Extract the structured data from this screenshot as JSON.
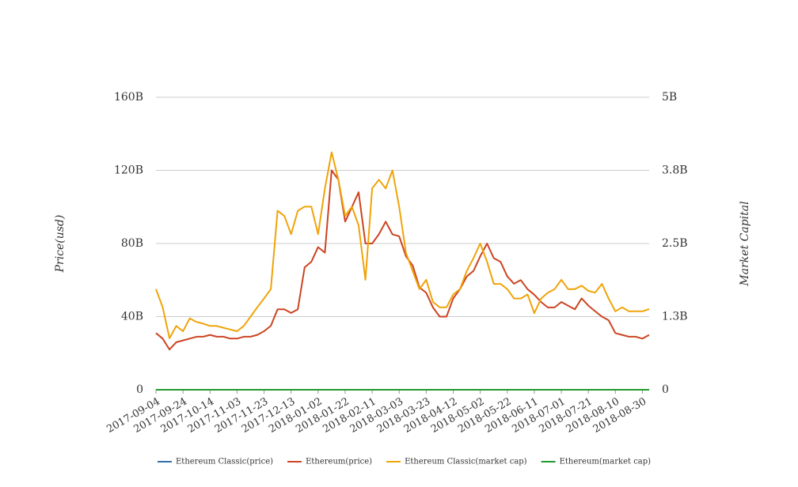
{
  "chart_data": {
    "type": "line",
    "y_label": "Price(usd)",
    "y2_label": "Market Capital",
    "x": [
      "2017-09-04",
      "2017-09-09",
      "2017-09-14",
      "2017-09-19",
      "2017-09-24",
      "2017-09-29",
      "2017-10-04",
      "2017-10-09",
      "2017-10-14",
      "2017-10-19",
      "2017-10-24",
      "2017-10-29",
      "2017-11-03",
      "2017-11-08",
      "2017-11-13",
      "2017-11-18",
      "2017-11-23",
      "2017-11-28",
      "2017-12-03",
      "2017-12-08",
      "2017-12-13",
      "2017-12-18",
      "2017-12-23",
      "2017-12-28",
      "2018-01-02",
      "2018-01-07",
      "2018-01-12",
      "2018-01-17",
      "2018-01-22",
      "2018-01-27",
      "2018-02-01",
      "2018-02-06",
      "2018-02-11",
      "2018-02-16",
      "2018-02-21",
      "2018-02-26",
      "2018-03-03",
      "2018-03-08",
      "2018-03-13",
      "2018-03-18",
      "2018-03-23",
      "2018-03-28",
      "2018-04-02",
      "2018-04-07",
      "2018-04-12",
      "2018-04-17",
      "2018-04-22",
      "2018-04-27",
      "2018-05-02",
      "2018-05-07",
      "2018-05-12",
      "2018-05-17",
      "2018-05-22",
      "2018-05-27",
      "2018-06-01",
      "2018-06-06",
      "2018-06-11",
      "2018-06-16",
      "2018-06-21",
      "2018-06-26",
      "2018-07-01",
      "2018-07-06",
      "2018-07-11",
      "2018-07-16",
      "2018-07-21",
      "2018-07-26",
      "2018-07-31",
      "2018-08-05",
      "2018-08-10",
      "2018-08-15",
      "2018-08-20",
      "2018-08-25",
      "2018-08-30",
      "2018-09-04"
    ],
    "xlim": [
      "2017-09-04",
      "2018-09-04"
    ],
    "xticks": [
      "2017-09-04",
      "2017-09-24",
      "2017-10-14",
      "2017-11-03",
      "2017-11-23",
      "2017-12-13",
      "2018-01-02",
      "2018-01-22",
      "2018-02-11",
      "2018-03-03",
      "2018-03-23",
      "2018-04-12",
      "2018-05-02",
      "2018-05-22",
      "2018-06-11",
      "2018-07-01",
      "2018-07-21",
      "2018-08-10",
      "2018-08-30"
    ],
    "ylim": [
      0,
      160000000000.0
    ],
    "yticks": [
      0,
      {
        "value": 40000000000.0,
        "label": "40B"
      },
      {
        "value": 80000000000.0,
        "label": "80B"
      },
      {
        "value": 120000000000.0,
        "label": "120B"
      },
      {
        "value": 160000000000.0,
        "label": "160B"
      }
    ],
    "y2lim": [
      0,
      5000000000.0
    ],
    "y2ticks": [
      0,
      {
        "value": 1250000000.0,
        "label": "1.3B"
      },
      {
        "value": 2500000000.0,
        "label": "2.5B"
      },
      {
        "value": 3750000000.0,
        "label": "3.8B"
      },
      {
        "value": 5000000000.0,
        "label": "5B"
      }
    ],
    "grid": true,
    "legend": "bottom",
    "series": [
      {
        "name": "Ethereum Classic(price)",
        "color": "#2f6fad",
        "values": [
          0,
          0,
          0,
          0,
          0,
          0,
          0,
          0,
          0,
          0,
          0,
          0,
          0,
          0,
          0,
          0,
          0,
          0,
          0,
          0,
          0,
          0,
          0,
          0,
          0,
          0,
          0,
          0,
          0,
          0,
          0,
          0,
          0,
          0,
          0,
          0,
          0,
          0,
          0,
          0,
          0,
          0,
          0,
          0,
          0,
          0,
          0,
          0,
          0,
          0,
          0,
          0,
          0,
          0,
          0,
          0,
          0,
          0,
          0,
          0,
          0,
          0,
          0,
          0,
          0,
          0,
          0,
          0,
          0,
          0,
          0,
          0,
          0,
          0
        ]
      },
      {
        "name": "Ethereum(price)",
        "color": "#cc4422",
        "values": [
          31000000000.0,
          28000000000.0,
          22000000000.0,
          26000000000.0,
          27000000000.0,
          28000000000.0,
          29000000000.0,
          29000000000.0,
          30000000000.0,
          29000000000.0,
          29000000000.0,
          28000000000.0,
          28000000000.0,
          29000000000.0,
          29000000000.0,
          30000000000.0,
          32000000000.0,
          35000000000.0,
          44000000000.0,
          44000000000.0,
          42000000000.0,
          44000000000.0,
          67000000000.0,
          70000000000.0,
          78000000000.0,
          75000000000.0,
          120000000000.0,
          115000000000.0,
          92000000000.0,
          100000000000.0,
          108000000000.0,
          80000000000.0,
          80000000000.0,
          85000000000.0,
          92000000000.0,
          85000000000.0,
          84000000000.0,
          73000000000.0,
          68000000000.0,
          56000000000.0,
          53000000000.0,
          45000000000.0,
          40000000000.0,
          40000000000.0,
          50000000000.0,
          55000000000.0,
          62000000000.0,
          65000000000.0,
          73000000000.0,
          80000000000.0,
          72000000000.0,
          70000000000.0,
          62000000000.0,
          58000000000.0,
          60000000000.0,
          55000000000.0,
          52000000000.0,
          48000000000.0,
          45000000000.0,
          45000000000.0,
          48000000000.0,
          46000000000.0,
          44000000000.0,
          50000000000.0,
          46000000000.0,
          43000000000.0,
          40000000000.0,
          38000000000.0,
          31000000000.0,
          30000000000.0,
          29000000000.0,
          29000000000.0,
          28000000000.0,
          30000000000.0
        ]
      },
      {
        "name": "Ethereum Classic(market cap)",
        "color": "#f0a30a",
        "axis": "y2",
        "values": [
          1720000000.0,
          1410000000.0,
          880000000.0,
          1090000000.0,
          1000000000.0,
          1220000000.0,
          1160000000.0,
          1130000000.0,
          1090000000.0,
          1090000000.0,
          1060000000.0,
          1030000000.0,
          1000000000.0,
          1090000000.0,
          1250000000.0,
          1410000000.0,
          1560000000.0,
          1720000000.0,
          3060000000.0,
          2970000000.0,
          2660000000.0,
          3060000000.0,
          3130000000.0,
          3130000000.0,
          2660000000.0,
          3440000000.0,
          4060000000.0,
          3590000000.0,
          2970000000.0,
          3130000000.0,
          2810000000.0,
          1880000000.0,
          3440000000.0,
          3590000000.0,
          3440000000.0,
          3750000000.0,
          3130000000.0,
          2340000000.0,
          2030000000.0,
          1720000000.0,
          1880000000.0,
          1500000000.0,
          1410000000.0,
          1410000000.0,
          1630000000.0,
          1720000000.0,
          2030000000.0,
          2250000000.0,
          2500000000.0,
          2190000000.0,
          1810000000.0,
          1810000000.0,
          1720000000.0,
          1560000000.0,
          1560000000.0,
          1630000000.0,
          1310000000.0,
          1560000000.0,
          1660000000.0,
          1720000000.0,
          1880000000.0,
          1720000000.0,
          1720000000.0,
          1780000000.0,
          1690000000.0,
          1660000000.0,
          1810000000.0,
          1560000000.0,
          1340000000.0,
          1410000000.0,
          1340000000.0,
          1340000000.0,
          1340000000.0,
          1380000000.0
        ]
      },
      {
        "name": "Ethereum(market cap)",
        "color": "#1f9a2a",
        "axis": "y2",
        "values": [
          0,
          0,
          0,
          0,
          0,
          0,
          0,
          0,
          0,
          0,
          0,
          0,
          0,
          0,
          0,
          0,
          0,
          0,
          0,
          0,
          0,
          0,
          0,
          0,
          0,
          0,
          0,
          0,
          0,
          0,
          0,
          0,
          0,
          0,
          0,
          0,
          0,
          0,
          0,
          0,
          0,
          0,
          0,
          0,
          0,
          0,
          0,
          0,
          0,
          0,
          0,
          0,
          0,
          0,
          0,
          0,
          0,
          0,
          0,
          0,
          0,
          0,
          0,
          0,
          0,
          0,
          0,
          0,
          0,
          0,
          0,
          0,
          0,
          0
        ]
      }
    ]
  }
}
